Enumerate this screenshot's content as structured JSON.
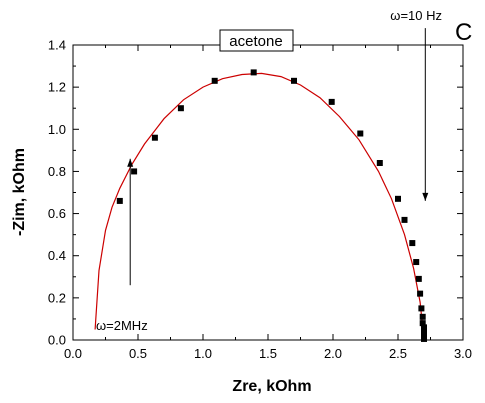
{
  "chart_data": {
    "type": "scatter",
    "panel_label": "C",
    "legend_label": "acetone",
    "xlabel": "Zre, kOhm",
    "ylabel": "-Zim, kOhm",
    "xlim": [
      0.0,
      3.0
    ],
    "ylim": [
      0.0,
      1.4
    ],
    "x_ticks": [
      "0.0",
      "0.5",
      "1.0",
      "1.5",
      "2.0",
      "2.5",
      "3.0"
    ],
    "y_ticks": [
      "0.0",
      "0.2",
      "0.4",
      "0.6",
      "0.8",
      "1.0",
      "1.2",
      "1.4"
    ],
    "grid": false,
    "series": [
      {
        "kind": "points",
        "marker": "square",
        "color": "#000000",
        "x": [
          0.36,
          0.47,
          0.63,
          0.83,
          1.09,
          1.39,
          1.7,
          1.99,
          2.21,
          2.36,
          2.5,
          2.55,
          2.61,
          2.64,
          2.66,
          2.67,
          2.68,
          2.69,
          2.69,
          2.7,
          2.7,
          2.7,
          2.7,
          2.7,
          2.7,
          2.7
        ],
        "y": [
          0.66,
          0.8,
          0.96,
          1.1,
          1.23,
          1.27,
          1.23,
          1.13,
          0.98,
          0.84,
          0.67,
          0.57,
          0.46,
          0.37,
          0.29,
          0.22,
          0.15,
          0.11,
          0.08,
          0.06,
          0.04,
          0.03,
          0.02,
          0.015,
          0.01,
          0.005
        ]
      },
      {
        "kind": "fit-line",
        "color": "#cc0000",
        "x": [
          0.17,
          0.2,
          0.25,
          0.3,
          0.36,
          0.45,
          0.55,
          0.7,
          0.85,
          1.0,
          1.15,
          1.3,
          1.45,
          1.6,
          1.75,
          1.9,
          2.05,
          2.2,
          2.35,
          2.45,
          2.55,
          2.62,
          2.67,
          2.7
        ],
        "y": [
          0.05,
          0.33,
          0.52,
          0.63,
          0.72,
          0.83,
          0.93,
          1.05,
          1.14,
          1.2,
          1.24,
          1.26,
          1.265,
          1.25,
          1.21,
          1.15,
          1.06,
          0.95,
          0.8,
          0.67,
          0.5,
          0.34,
          0.18,
          0.0
        ]
      }
    ],
    "annotations": [
      {
        "text": "ω=10 Hz",
        "arrow_from": [
          2.71,
          1.48
        ],
        "arrow_to": [
          2.71,
          0.66
        ]
      },
      {
        "text": "ω=2MHz",
        "arrow_from": [
          0.44,
          0.26
        ],
        "arrow_to": [
          0.44,
          0.86
        ]
      }
    ]
  }
}
